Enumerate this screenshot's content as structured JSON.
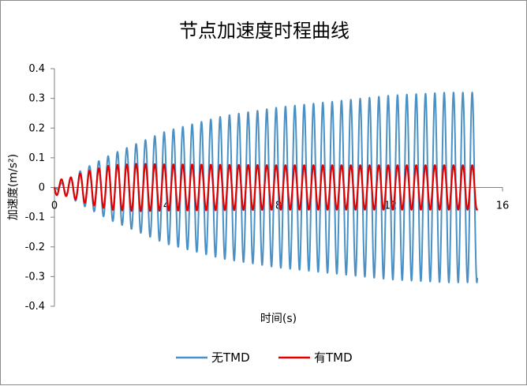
{
  "chart_data": {
    "type": "line",
    "title": "节点加速度时程曲线",
    "xlabel": "时间(s)",
    "ylabel": "加速度(m/s²)",
    "xlim": [
      0,
      16
    ],
    "ylim": [
      -0.4,
      0.4
    ],
    "x_ticks": [
      "0",
      "4",
      "8",
      "12",
      "16"
    ],
    "y_ticks": [
      "0.4",
      "0.3",
      "0.2",
      "0.1",
      "0",
      "-0.1",
      "-0.2",
      "-0.3",
      "-0.4"
    ],
    "legend_position": "bottom",
    "grid": false,
    "x_range_data": [
      0,
      15.1
    ],
    "series": [
      {
        "name": "无TMD",
        "color": "#4a90c4",
        "frequency_hz": 3.0,
        "amplitude_envelope": {
          "t": [
            0,
            1,
            2,
            3,
            4,
            6,
            8,
            10,
            12,
            14,
            15.1
          ],
          "amp": [
            0.0,
            0.06,
            0.11,
            0.15,
            0.19,
            0.24,
            0.27,
            0.29,
            0.31,
            0.32,
            0.32
          ]
        }
      },
      {
        "name": "有TMD",
        "color": "#e00000",
        "frequency_hz": 3.0,
        "amplitude_envelope": {
          "t": [
            0,
            0.5,
            1,
            2,
            3,
            4,
            8,
            12,
            15.1
          ],
          "amp": [
            0.025,
            0.03,
            0.05,
            0.075,
            0.08,
            0.078,
            0.075,
            0.075,
            0.075
          ]
        }
      }
    ]
  }
}
